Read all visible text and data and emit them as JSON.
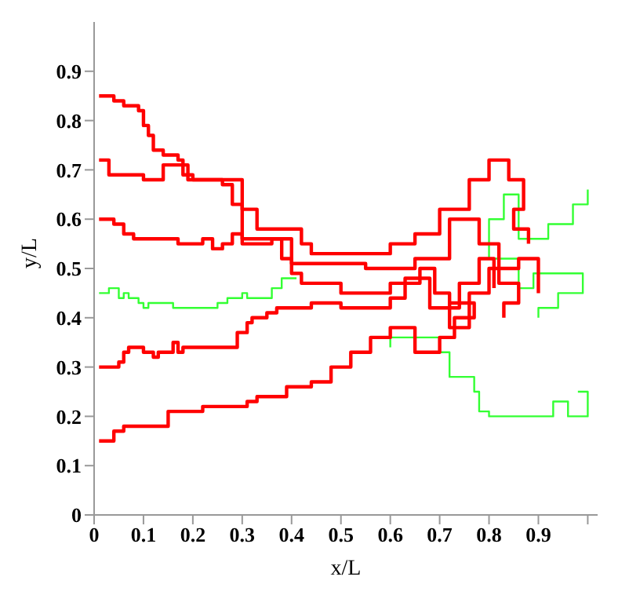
{
  "chart_data": {
    "type": "line",
    "xlabel": "x/L",
    "ylabel": "y/L",
    "xlim": [
      0,
      1.02
    ],
    "ylim": [
      0,
      1
    ],
    "xticks": [
      0,
      0.1,
      0.2,
      0.3,
      0.4,
      0.5,
      0.6,
      0.7,
      0.8,
      0.9,
      {
        "value": 1,
        "label": null
      }
    ],
    "yticks": [
      0,
      0.1,
      0.2,
      0.3,
      0.4,
      0.5,
      0.6,
      0.7,
      0.8,
      0.9
    ],
    "grid": false,
    "marker": "none",
    "line_style": "solid",
    "series": [
      {
        "color": "#33ff33",
        "x": [
          0.6,
          0.6,
          0.7,
          0.7,
          0.72,
          0.72,
          0.77,
          0.77,
          0.78,
          0.78,
          0.8,
          0.8,
          0.93,
          0.93,
          0.96,
          0.96,
          1.0,
          1.0,
          0.98
        ],
        "values": [
          0.34,
          0.36,
          0.36,
          0.33,
          0.33,
          0.28,
          0.28,
          0.25,
          0.25,
          0.21,
          0.21,
          0.2,
          0.2,
          0.23,
          0.23,
          0.2,
          0.2,
          0.25,
          0.25
        ]
      },
      {
        "color": "#33ff33",
        "x": [
          0.9,
          0.9,
          0.94,
          0.94,
          0.99,
          0.99,
          0.89,
          0.89,
          0.86,
          0.86,
          0.8,
          0.8,
          0.83,
          0.83,
          0.86,
          0.86,
          0.92,
          0.92,
          0.97,
          0.97,
          1.0,
          1.0
        ],
        "values": [
          0.4,
          0.42,
          0.42,
          0.45,
          0.45,
          0.49,
          0.49,
          0.46,
          0.46,
          0.52,
          0.52,
          0.6,
          0.6,
          0.65,
          0.65,
          0.56,
          0.56,
          0.59,
          0.59,
          0.63,
          0.63,
          0.66
        ]
      },
      {
        "color": "#33ff33",
        "x": [
          0.01,
          0.03,
          0.03,
          0.05,
          0.05,
          0.06,
          0.06,
          0.07,
          0.07,
          0.09,
          0.09,
          0.1,
          0.1,
          0.11,
          0.11,
          0.16,
          0.16,
          0.25,
          0.25,
          0.27,
          0.27,
          0.3,
          0.3,
          0.31,
          0.31,
          0.36,
          0.36,
          0.38,
          0.38,
          0.41
        ],
        "values": [
          0.45,
          0.45,
          0.46,
          0.46,
          0.44,
          0.44,
          0.45,
          0.45,
          0.44,
          0.44,
          0.43,
          0.43,
          0.42,
          0.42,
          0.43,
          0.43,
          0.42,
          0.42,
          0.43,
          0.43,
          0.44,
          0.44,
          0.45,
          0.45,
          0.44,
          0.44,
          0.46,
          0.46,
          0.48,
          0.48
        ]
      },
      {
        "color": "#ff0000",
        "x": [
          0.01,
          0.04,
          0.04,
          0.06,
          0.06,
          0.09,
          0.09,
          0.1,
          0.1,
          0.11,
          0.11,
          0.12,
          0.12,
          0.14,
          0.14,
          0.17,
          0.17,
          0.18,
          0.18,
          0.2,
          0.2,
          0.26,
          0.26,
          0.28,
          0.28,
          0.3,
          0.3,
          0.33,
          0.33,
          0.42,
          0.42,
          0.44,
          0.44,
          0.6,
          0.6,
          0.65,
          0.65,
          0.7,
          0.7,
          0.76,
          0.76,
          0.8,
          0.8,
          0.84,
          0.84,
          0.87,
          0.87,
          0.85,
          0.85,
          0.88,
          0.88
        ],
        "values": [
          0.85,
          0.85,
          0.84,
          0.84,
          0.83,
          0.83,
          0.82,
          0.82,
          0.79,
          0.79,
          0.77,
          0.77,
          0.74,
          0.74,
          0.73,
          0.73,
          0.72,
          0.72,
          0.69,
          0.69,
          0.68,
          0.68,
          0.67,
          0.67,
          0.63,
          0.63,
          0.62,
          0.62,
          0.58,
          0.58,
          0.55,
          0.55,
          0.53,
          0.53,
          0.55,
          0.55,
          0.57,
          0.57,
          0.62,
          0.62,
          0.68,
          0.68,
          0.72,
          0.72,
          0.68,
          0.68,
          0.62,
          0.62,
          0.58,
          0.58,
          0.55
        ]
      },
      {
        "color": "#ff0000",
        "x": [
          0.01,
          0.03,
          0.03,
          0.1,
          0.1,
          0.14,
          0.14,
          0.19,
          0.19,
          0.3,
          0.3,
          0.4,
          0.4,
          0.55,
          0.55,
          0.65,
          0.65,
          0.72,
          0.72,
          0.78,
          0.78,
          0.82,
          0.82,
          0.86,
          0.86,
          0.83,
          0.83
        ],
        "values": [
          0.72,
          0.72,
          0.69,
          0.69,
          0.68,
          0.68,
          0.71,
          0.71,
          0.68,
          0.68,
          0.56,
          0.56,
          0.51,
          0.51,
          0.5,
          0.5,
          0.52,
          0.52,
          0.6,
          0.6,
          0.55,
          0.55,
          0.47,
          0.47,
          0.43,
          0.43,
          0.4
        ]
      },
      {
        "color": "#ff0000",
        "x": [
          0.01,
          0.04,
          0.04,
          0.06,
          0.06,
          0.08,
          0.08,
          0.17,
          0.17,
          0.22,
          0.22,
          0.24,
          0.24,
          0.26,
          0.26,
          0.28,
          0.28,
          0.3,
          0.3,
          0.36,
          0.36,
          0.38,
          0.38,
          0.4,
          0.4,
          0.42,
          0.42,
          0.5,
          0.5,
          0.6,
          0.6,
          0.66,
          0.66,
          0.69,
          0.69,
          0.72,
          0.72,
          0.76,
          0.76,
          0.8,
          0.8,
          0.86,
          0.86,
          0.9,
          0.9
        ],
        "values": [
          0.6,
          0.6,
          0.59,
          0.59,
          0.57,
          0.57,
          0.56,
          0.56,
          0.55,
          0.55,
          0.56,
          0.56,
          0.54,
          0.54,
          0.55,
          0.55,
          0.57,
          0.57,
          0.55,
          0.55,
          0.56,
          0.56,
          0.52,
          0.52,
          0.49,
          0.49,
          0.47,
          0.47,
          0.45,
          0.45,
          0.47,
          0.47,
          0.5,
          0.5,
          0.45,
          0.45,
          0.38,
          0.38,
          0.45,
          0.45,
          0.5,
          0.5,
          0.52,
          0.52,
          0.45
        ]
      },
      {
        "color": "#ff0000",
        "x": [
          0.01,
          0.05,
          0.05,
          0.06,
          0.06,
          0.07,
          0.07,
          0.1,
          0.1,
          0.12,
          0.12,
          0.13,
          0.13,
          0.16,
          0.16,
          0.17,
          0.17,
          0.18,
          0.18,
          0.29,
          0.29,
          0.31,
          0.31,
          0.32,
          0.32,
          0.35,
          0.35,
          0.37,
          0.37,
          0.44,
          0.44,
          0.5,
          0.5,
          0.6,
          0.6,
          0.63,
          0.63,
          0.68,
          0.68,
          0.74,
          0.74,
          0.78,
          0.78,
          0.81,
          0.81
        ],
        "values": [
          0.3,
          0.3,
          0.31,
          0.31,
          0.33,
          0.33,
          0.34,
          0.34,
          0.33,
          0.33,
          0.32,
          0.32,
          0.33,
          0.33,
          0.35,
          0.35,
          0.33,
          0.33,
          0.34,
          0.34,
          0.37,
          0.37,
          0.39,
          0.39,
          0.4,
          0.4,
          0.41,
          0.41,
          0.42,
          0.42,
          0.43,
          0.43,
          0.42,
          0.42,
          0.44,
          0.44,
          0.48,
          0.48,
          0.42,
          0.42,
          0.47,
          0.47,
          0.52,
          0.52,
          0.46
        ]
      },
      {
        "color": "#ff0000",
        "x": [
          0.01,
          0.04,
          0.04,
          0.06,
          0.06,
          0.15,
          0.15,
          0.22,
          0.22,
          0.31,
          0.31,
          0.33,
          0.33,
          0.39,
          0.39,
          0.44,
          0.44,
          0.48,
          0.48,
          0.52,
          0.52,
          0.56,
          0.56,
          0.6,
          0.6,
          0.65,
          0.65,
          0.7,
          0.7,
          0.73,
          0.73,
          0.77,
          0.77,
          0.72
        ],
        "values": [
          0.15,
          0.15,
          0.17,
          0.17,
          0.18,
          0.18,
          0.21,
          0.21,
          0.22,
          0.22,
          0.23,
          0.23,
          0.24,
          0.24,
          0.26,
          0.26,
          0.27,
          0.27,
          0.3,
          0.3,
          0.33,
          0.33,
          0.36,
          0.36,
          0.38,
          0.38,
          0.33,
          0.33,
          0.36,
          0.36,
          0.4,
          0.4,
          0.43,
          0.43
        ]
      }
    ]
  }
}
